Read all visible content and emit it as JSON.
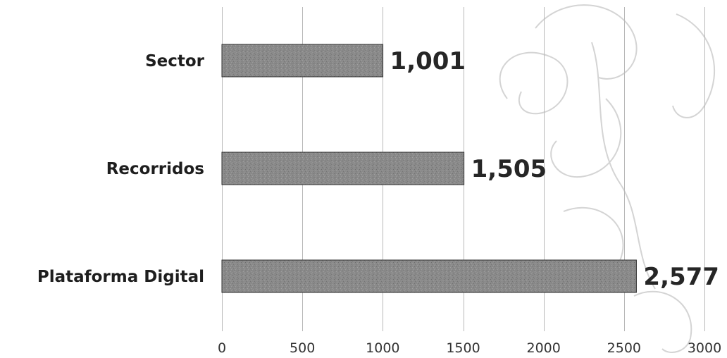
{
  "chart_data": {
    "type": "bar",
    "orientation": "horizontal",
    "categories": [
      "Sector",
      "Recorridos",
      "Plataforma Digital"
    ],
    "values": [
      1001,
      1505,
      2577
    ],
    "value_labels": [
      "1,001",
      "1,505",
      "2,577"
    ],
    "xlim": [
      0,
      3000
    ],
    "x_ticks": [
      0,
      500,
      1000,
      1500,
      2000,
      2500,
      3000
    ],
    "x_tick_labels": [
      "0",
      "500",
      "1000",
      "1500",
      "2000",
      "2500",
      "3000"
    ],
    "title": "",
    "xlabel": "",
    "ylabel": "",
    "grid": "vertical",
    "legend": "none",
    "bar_color": "#8a8a8a",
    "bar_border_color": "#2e2e2e",
    "text_color": "#1e1e1e"
  }
}
